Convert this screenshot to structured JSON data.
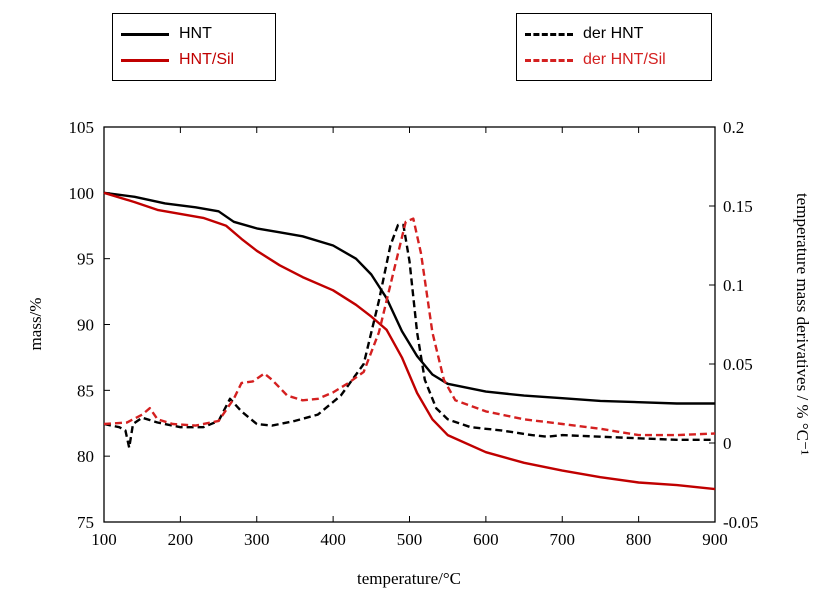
{
  "legend_left": [
    {
      "label": "HNT",
      "color": "#000000",
      "dash": "solid"
    },
    {
      "label": "HNT/Sil",
      "color": "#c00000",
      "dash": "solid"
    }
  ],
  "legend_right": [
    {
      "label": "der HNT",
      "color": "#000000",
      "dash": "dashed"
    },
    {
      "label": "der HNT/Sil",
      "color": "#d42020",
      "dash": "dashed"
    }
  ],
  "chart_data": {
    "type": "line",
    "xlabel": "temperature/°C",
    "ylabel_left": "mass/%",
    "ylabel_right": "temperature mass derivatives / % °C⁻¹",
    "xlim": [
      100,
      900
    ],
    "ylim_left": [
      75,
      105
    ],
    "ylim_right": [
      -0.05,
      0.2
    ],
    "x_ticks": [
      100,
      200,
      300,
      400,
      500,
      600,
      700,
      800,
      900
    ],
    "y_ticks_left": [
      75,
      80,
      85,
      90,
      95,
      100,
      105
    ],
    "y_ticks_right": [
      "-0.05",
      "0",
      "0.05",
      "0.1",
      "0.15",
      "0.2"
    ],
    "series": [
      {
        "name": "HNT",
        "axis": "left",
        "color": "#000000",
        "dash": "solid",
        "points": [
          [
            100,
            100
          ],
          [
            140,
            99.7
          ],
          [
            180,
            99.2
          ],
          [
            220,
            98.9
          ],
          [
            250,
            98.6
          ],
          [
            270,
            97.8
          ],
          [
            300,
            97.3
          ],
          [
            330,
            97.0
          ],
          [
            360,
            96.7
          ],
          [
            400,
            96.0
          ],
          [
            430,
            95.0
          ],
          [
            450,
            93.8
          ],
          [
            470,
            92.0
          ],
          [
            490,
            89.5
          ],
          [
            510,
            87.6
          ],
          [
            530,
            86.2
          ],
          [
            550,
            85.5
          ],
          [
            600,
            84.9
          ],
          [
            650,
            84.6
          ],
          [
            700,
            84.4
          ],
          [
            750,
            84.2
          ],
          [
            800,
            84.1
          ],
          [
            850,
            84.0
          ],
          [
            900,
            84.0
          ]
        ]
      },
      {
        "name": "HNT/Sil",
        "axis": "left",
        "color": "#c00000",
        "dash": "solid",
        "points": [
          [
            100,
            100
          ],
          [
            140,
            99.3
          ],
          [
            170,
            98.7
          ],
          [
            200,
            98.4
          ],
          [
            230,
            98.1
          ],
          [
            260,
            97.5
          ],
          [
            280,
            96.5
          ],
          [
            300,
            95.6
          ],
          [
            330,
            94.5
          ],
          [
            360,
            93.6
          ],
          [
            400,
            92.6
          ],
          [
            430,
            91.5
          ],
          [
            450,
            90.6
          ],
          [
            470,
            89.6
          ],
          [
            490,
            87.5
          ],
          [
            510,
            84.8
          ],
          [
            530,
            82.8
          ],
          [
            550,
            81.6
          ],
          [
            600,
            80.3
          ],
          [
            650,
            79.5
          ],
          [
            700,
            78.9
          ],
          [
            750,
            78.4
          ],
          [
            800,
            78.0
          ],
          [
            850,
            77.8
          ],
          [
            900,
            77.5
          ]
        ]
      },
      {
        "name": "der HNT",
        "axis": "right",
        "color": "#000000",
        "dash": "dashed",
        "points": [
          [
            100,
            0.012
          ],
          [
            120,
            0.01
          ],
          [
            128,
            0.008
          ],
          [
            133,
            -0.003
          ],
          [
            138,
            0.012
          ],
          [
            150,
            0.016
          ],
          [
            170,
            0.013
          ],
          [
            200,
            0.01
          ],
          [
            230,
            0.01
          ],
          [
            250,
            0.014
          ],
          [
            265,
            0.028
          ],
          [
            280,
            0.02
          ],
          [
            300,
            0.012
          ],
          [
            320,
            0.011
          ],
          [
            350,
            0.014
          ],
          [
            380,
            0.018
          ],
          [
            410,
            0.03
          ],
          [
            440,
            0.05
          ],
          [
            460,
            0.09
          ],
          [
            475,
            0.125
          ],
          [
            485,
            0.138
          ],
          [
            492,
            0.138
          ],
          [
            500,
            0.115
          ],
          [
            510,
            0.07
          ],
          [
            520,
            0.04
          ],
          [
            535,
            0.022
          ],
          [
            550,
            0.015
          ],
          [
            580,
            0.01
          ],
          [
            620,
            0.008
          ],
          [
            660,
            0.005
          ],
          [
            680,
            0.004
          ],
          [
            700,
            0.005
          ],
          [
            750,
            0.004
          ],
          [
            800,
            0.003
          ],
          [
            850,
            0.002
          ],
          [
            900,
            0.002
          ]
        ]
      },
      {
        "name": "der HNT/Sil",
        "axis": "right",
        "color": "#d42020",
        "dash": "dashed",
        "points": [
          [
            100,
            0.012
          ],
          [
            130,
            0.013
          ],
          [
            150,
            0.018
          ],
          [
            160,
            0.022
          ],
          [
            170,
            0.015
          ],
          [
            190,
            0.012
          ],
          [
            220,
            0.011
          ],
          [
            250,
            0.014
          ],
          [
            270,
            0.028
          ],
          [
            280,
            0.038
          ],
          [
            295,
            0.039
          ],
          [
            310,
            0.044
          ],
          [
            320,
            0.04
          ],
          [
            340,
            0.03
          ],
          [
            360,
            0.027
          ],
          [
            380,
            0.028
          ],
          [
            400,
            0.032
          ],
          [
            420,
            0.038
          ],
          [
            440,
            0.045
          ],
          [
            460,
            0.07
          ],
          [
            480,
            0.11
          ],
          [
            495,
            0.14
          ],
          [
            505,
            0.142
          ],
          [
            515,
            0.12
          ],
          [
            530,
            0.07
          ],
          [
            545,
            0.04
          ],
          [
            560,
            0.027
          ],
          [
            600,
            0.02
          ],
          [
            650,
            0.015
          ],
          [
            700,
            0.012
          ],
          [
            750,
            0.009
          ],
          [
            800,
            0.005
          ],
          [
            850,
            0.005
          ],
          [
            900,
            0.006
          ]
        ]
      }
    ]
  }
}
